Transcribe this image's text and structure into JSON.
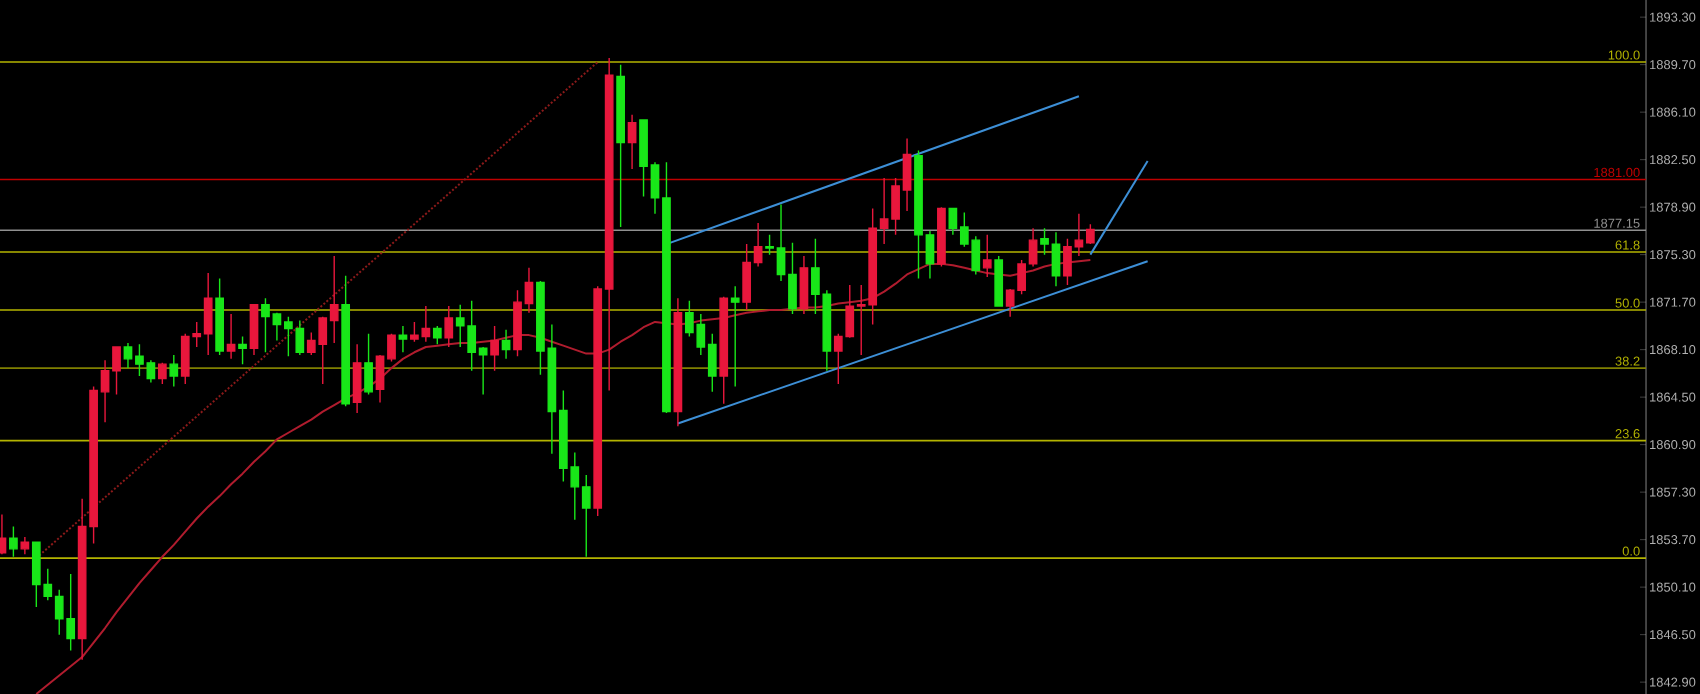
{
  "chart_data": {
    "type": "candlestick",
    "categories": [
      null,
      null,
      null,
      null,
      null,
      null,
      null,
      null,
      null,
      null,
      null,
      null,
      null,
      null,
      null,
      null,
      null,
      null,
      null,
      null,
      null,
      null,
      null,
      null,
      null,
      null,
      null,
      null,
      null,
      null,
      null,
      null,
      null,
      null,
      null,
      null,
      null,
      null,
      null,
      null,
      null,
      null,
      null,
      null,
      null,
      null,
      null,
      null,
      null,
      null,
      null,
      null,
      null,
      null,
      null,
      null,
      null,
      null,
      null,
      null,
      null,
      null,
      null,
      null,
      null,
      null,
      null,
      null,
      null,
      null,
      null,
      null,
      null,
      null,
      null,
      null,
      null,
      null,
      null,
      null,
      null,
      null,
      null,
      null,
      null,
      null,
      null,
      null,
      null,
      null,
      null,
      null,
      null,
      null,
      null,
      null,
      null,
      null,
      null,
      null,
      null,
      null,
      null,
      null,
      null,
      null,
      null,
      null,
      null,
      null,
      null,
      null,
      null,
      null,
      null,
      null,
      null,
      null,
      null,
      null,
      null,
      null,
      null,
      null,
      null,
      null,
      null,
      null,
      null,
      null,
      null,
      null,
      null,
      null,
      null,
      null,
      null,
      null,
      null,
      null,
      null,
      null,
      null,
      null
    ],
    "ohlc": [
      [
        1852.7,
        1855.6,
        1852.6,
        1853.8
      ],
      [
        1853.8,
        1854.7,
        1852.4,
        1853.0
      ],
      [
        1853.0,
        1853.9,
        1852.6,
        1853.5
      ],
      [
        1853.5,
        1853.5,
        1848.6,
        1850.3
      ],
      [
        1850.3,
        1851.5,
        1849.1,
        1849.4
      ],
      [
        1849.4,
        1849.9,
        1846.5,
        1847.7
      ],
      [
        1847.7,
        1851.1,
        1845.3,
        1846.2
      ],
      [
        1846.2,
        1856.8,
        1844.6,
        1854.7
      ],
      [
        1854.7,
        1865.3,
        1853.4,
        1865.0
      ],
      [
        1864.9,
        1867.3,
        1862.6,
        1866.5
      ],
      [
        1866.5,
        1868.3,
        1864.7,
        1868.3
      ],
      [
        1868.3,
        1868.6,
        1866.7,
        1867.4
      ],
      [
        1867.6,
        1868.5,
        1866.1,
        1867.0
      ],
      [
        1867.1,
        1867.3,
        1865.6,
        1865.9
      ],
      [
        1865.9,
        1867.1,
        1865.5,
        1867.0
      ],
      [
        1867.0,
        1867.7,
        1865.3,
        1866.1
      ],
      [
        1866.1,
        1869.3,
        1865.5,
        1869.1
      ],
      [
        1869.1,
        1870.2,
        1868.3,
        1869.3
      ],
      [
        1869.3,
        1873.9,
        1867.7,
        1872.0
      ],
      [
        1872.0,
        1873.5,
        1867.7,
        1868.0
      ],
      [
        1868.0,
        1870.8,
        1867.4,
        1868.5
      ],
      [
        1868.5,
        1869.1,
        1867.0,
        1868.2
      ],
      [
        1868.2,
        1871.5,
        1867.7,
        1871.5
      ],
      [
        1871.5,
        1872.0,
        1867.9,
        1870.6
      ],
      [
        1870.8,
        1870.9,
        1868.8,
        1870.0
      ],
      [
        1870.2,
        1870.6,
        1867.6,
        1869.7
      ],
      [
        1869.7,
        1870.3,
        1867.7,
        1867.9
      ],
      [
        1867.9,
        1869.4,
        1867.7,
        1868.8
      ],
      [
        1868.5,
        1870.6,
        1865.5,
        1870.5
      ],
      [
        1870.3,
        1875.2,
        1868.6,
        1871.5
      ],
      [
        1871.5,
        1873.7,
        1863.8,
        1864.0
      ],
      [
        1864.1,
        1868.5,
        1863.3,
        1867.1
      ],
      [
        1867.1,
        1869.3,
        1864.7,
        1864.9
      ],
      [
        1865.1,
        1867.7,
        1864.1,
        1867.6
      ],
      [
        1867.4,
        1869.3,
        1867.2,
        1869.2
      ],
      [
        1869.2,
        1869.9,
        1867.9,
        1868.9
      ],
      [
        1868.9,
        1870.2,
        1868.7,
        1869.2
      ],
      [
        1869.1,
        1871.4,
        1868.7,
        1869.7
      ],
      [
        1869.7,
        1869.9,
        1868.5,
        1869.0
      ],
      [
        1869.0,
        1871.4,
        1868.3,
        1870.5
      ],
      [
        1870.5,
        1871.5,
        1868.3,
        1869.9
      ],
      [
        1869.9,
        1871.8,
        1866.5,
        1867.9
      ],
      [
        1868.2,
        1868.3,
        1864.7,
        1867.7
      ],
      [
        1867.7,
        1869.9,
        1866.5,
        1868.8
      ],
      [
        1868.8,
        1869.6,
        1867.4,
        1868.1
      ],
      [
        1868.1,
        1872.6,
        1867.6,
        1871.7
      ],
      [
        1871.6,
        1874.3,
        1870.9,
        1873.2
      ],
      [
        1873.2,
        1873.3,
        1866.2,
        1868.0
      ],
      [
        1868.2,
        1870.0,
        1860.2,
        1863.4
      ],
      [
        1863.5,
        1865.0,
        1858.1,
        1859.1
      ],
      [
        1859.2,
        1860.3,
        1855.2,
        1857.7
      ],
      [
        1857.7,
        1858.6,
        1852.4,
        1856.1
      ],
      [
        1856.1,
        1872.9,
        1855.5,
        1872.7
      ],
      [
        1872.7,
        1890.2,
        1865.0,
        1888.9
      ],
      [
        1888.8,
        1889.7,
        1877.4,
        1883.8
      ],
      [
        1883.8,
        1885.9,
        1881.8,
        1885.3
      ],
      [
        1885.5,
        1885.5,
        1879.7,
        1882.0
      ],
      [
        1882.1,
        1882.3,
        1878.4,
        1879.6
      ],
      [
        1879.6,
        1882.3,
        1863.3,
        1863.4
      ],
      [
        1863.4,
        1872.0,
        1862.3,
        1870.9
      ],
      [
        1870.9,
        1871.8,
        1869.1,
        1869.4
      ],
      [
        1870.0,
        1870.8,
        1867.7,
        1868.3
      ],
      [
        1868.5,
        1869.3,
        1864.9,
        1866.1
      ],
      [
        1866.1,
        1872.1,
        1864.0,
        1872.0
      ],
      [
        1872.0,
        1872.9,
        1865.3,
        1871.7
      ],
      [
        1871.7,
        1876.1,
        1871.1,
        1874.7
      ],
      [
        1874.7,
        1877.7,
        1874.4,
        1875.9
      ],
      [
        1875.9,
        1876.8,
        1875.3,
        1875.8
      ],
      [
        1875.8,
        1879.1,
        1873.3,
        1873.8
      ],
      [
        1873.8,
        1876.2,
        1870.8,
        1871.2
      ],
      [
        1871.2,
        1875.2,
        1870.8,
        1874.3
      ],
      [
        1874.3,
        1876.5,
        1870.8,
        1872.3
      ],
      [
        1872.3,
        1872.6,
        1866.5,
        1868.0
      ],
      [
        1868.0,
        1869.3,
        1865.5,
        1869.1
      ],
      [
        1869.1,
        1873.0,
        1869.0,
        1871.4
      ],
      [
        1871.4,
        1873.0,
        1867.7,
        1871.5
      ],
      [
        1871.5,
        1878.8,
        1870.0,
        1877.3
      ],
      [
        1877.3,
        1881.1,
        1876.1,
        1878.0
      ],
      [
        1878.0,
        1881.1,
        1876.8,
        1880.5
      ],
      [
        1880.2,
        1884.1,
        1878.6,
        1882.9
      ],
      [
        1882.8,
        1883.2,
        1873.5,
        1876.8
      ],
      [
        1876.8,
        1877.1,
        1873.5,
        1874.6
      ],
      [
        1874.6,
        1878.9,
        1874.4,
        1878.8
      ],
      [
        1878.8,
        1878.8,
        1876.8,
        1877.3
      ],
      [
        1877.4,
        1878.5,
        1875.9,
        1876.1
      ],
      [
        1876.4,
        1876.7,
        1873.8,
        1874.1
      ],
      [
        1874.3,
        1876.8,
        1873.6,
        1874.9
      ],
      [
        1874.9,
        1875.2,
        1871.4,
        1871.4
      ],
      [
        1871.4,
        1872.7,
        1870.6,
        1872.6
      ],
      [
        1872.6,
        1874.9,
        1872.3,
        1874.6
      ],
      [
        1874.6,
        1877.3,
        1874.4,
        1876.4
      ],
      [
        1876.5,
        1877.3,
        1875.3,
        1876.1
      ],
      [
        1876.1,
        1877.0,
        1872.9,
        1873.7
      ],
      [
        1873.7,
        1876.5,
        1873.0,
        1875.9
      ],
      [
        1875.9,
        1878.4,
        1875.2,
        1876.4
      ],
      [
        1876.2,
        1877.6,
        1876.1,
        1877.2
      ],
      null,
      null,
      null,
      null,
      null,
      null,
      null,
      null,
      null,
      null,
      null,
      null,
      null,
      null,
      null,
      null,
      null,
      null,
      null,
      null,
      null,
      null,
      null,
      null,
      null,
      null,
      null,
      null,
      null,
      null,
      null,
      null,
      null,
      null,
      null,
      null,
      null,
      null,
      null,
      null,
      null,
      null,
      null,
      null,
      null,
      null,
      null,
      null
    ],
    "colors": [
      "#e8173c",
      "#19e619",
      "#e8173c",
      "#19e619",
      "#19e619",
      "#19e619",
      "#19e619",
      "#e8173c",
      "#e8173c",
      "#e8173c",
      "#e8173c",
      "#19e619",
      "#19e619",
      "#19e619",
      "#e8173c",
      "#19e619",
      "#e8173c",
      "#e8173c",
      "#e8173c",
      "#19e619",
      "#e8173c",
      "#19e619",
      "#e8173c",
      "#19e619",
      "#19e619",
      "#19e619",
      "#19e619",
      "#e8173c",
      "#e8173c",
      "#e8173c",
      "#19e619",
      "#e8173c",
      "#19e619",
      "#e8173c",
      "#e8173c",
      "#19e619",
      "#e8173c",
      "#e8173c",
      "#19e619",
      "#e8173c",
      "#19e619",
      "#19e619",
      "#19e619",
      "#e8173c",
      "#19e619",
      "#e8173c",
      "#e8173c",
      "#19e619",
      "#19e619",
      "#19e619",
      "#19e619",
      "#19e619",
      "#e8173c",
      "#e8173c",
      "#19e619",
      "#e8173c",
      "#19e619",
      "#19e619",
      "#19e619",
      "#e8173c",
      "#19e619",
      "#19e619",
      "#19e619",
      "#e8173c",
      "#19e619",
      "#e8173c",
      "#e8173c",
      "#19e619",
      "#19e619",
      "#19e619",
      "#e8173c",
      "#19e619",
      "#19e619",
      "#e8173c",
      "#e8173c",
      "#e8173c",
      "#e8173c",
      "#e8173c",
      "#e8173c",
      "#e8173c",
      "#19e619",
      "#19e619",
      "#e8173c",
      "#19e619",
      "#19e619",
      "#19e619",
      "#e8173c",
      "#19e619",
      "#e8173c",
      "#e8173c",
      "#e8173c",
      "#19e619",
      "#19e619",
      "#e8173c",
      "#e8173c",
      "#e8173c",
      null,
      null,
      null,
      null,
      null,
      null,
      null,
      null,
      null,
      null,
      null,
      null,
      null,
      null,
      null,
      null,
      null,
      null,
      null,
      null,
      null,
      null,
      null,
      null,
      null,
      null,
      null,
      null,
      null,
      null,
      null,
      null,
      null,
      null,
      null,
      null,
      null,
      null,
      null,
      null,
      null,
      null,
      null,
      null,
      null,
      null,
      null,
      null
    ],
    "series": [
      {
        "type": "line",
        "color": "#b01c2e",
        "line_style": "solid",
        "values": [
          null,
          null,
          null,
          1842.0,
          1842.7,
          1843.4,
          1844.1,
          1844.8,
          1845.9,
          1847.0,
          1848.2,
          1849.3,
          1850.4,
          1851.4,
          1852.4,
          1853.3,
          1854.3,
          1855.3,
          1856.2,
          1857.0,
          1857.9,
          1858.7,
          1859.6,
          1860.4,
          1861.3,
          1861.8,
          1862.3,
          1862.8,
          1863.4,
          1863.9,
          1864.4,
          1864.8,
          1865.3,
          1865.9,
          1866.7,
          1867.4,
          1867.9,
          1868.3,
          1868.4,
          1868.5,
          1868.6,
          1868.6,
          1868.7,
          1868.8,
          1869.0,
          1869.2,
          1869.2,
          1869.0,
          1868.7,
          1868.4,
          1868.1,
          1867.8,
          1867.8,
          1868.1,
          1868.7,
          1869.2,
          1869.8,
          1870.2,
          1870.1,
          1870.0,
          1870.1,
          1870.3,
          1870.4,
          1870.5,
          1870.7,
          1870.9,
          1871.0,
          1871.1,
          1871.1,
          1871.2,
          1871.3,
          1871.3,
          1871.4,
          1871.6,
          1871.7,
          1871.8,
          1872.0,
          1872.5,
          1873.1,
          1873.8,
          1874.2,
          1874.6,
          1874.6,
          1874.5,
          1874.3,
          1874.1,
          1873.9,
          1873.8,
          1873.7,
          1873.9,
          1874.1,
          1874.4,
          1874.6,
          1874.7,
          1874.8,
          1874.9,
          null,
          null,
          null,
          null,
          null,
          null,
          null,
          null,
          null,
          null,
          null,
          null,
          null,
          null,
          null,
          null,
          null,
          null,
          null,
          null,
          null,
          null,
          null,
          null,
          null,
          null,
          null,
          null,
          null,
          null,
          null,
          null,
          null,
          null,
          null,
          null,
          null,
          null,
          null,
          null,
          null,
          null,
          null,
          null,
          null,
          null,
          null,
          null
        ]
      },
      {
        "type": "line",
        "color": "#8b1a1a",
        "line_style": "dotted",
        "values": [
          null,
          null,
          null,
          1852.3,
          null,
          null,
          null,
          null,
          null,
          null,
          null,
          null,
          null,
          null,
          null,
          null,
          null,
          null,
          null,
          null,
          null,
          null,
          null,
          null,
          null,
          null,
          null,
          null,
          null,
          null,
          null,
          null,
          null,
          null,
          null,
          null,
          null,
          null,
          null,
          null,
          null,
          null,
          null,
          null,
          null,
          null,
          null,
          null,
          null,
          null,
          null,
          null,
          1889.9,
          null,
          null,
          null,
          null,
          null,
          null,
          null,
          null,
          null,
          null,
          null,
          null,
          null,
          null,
          null,
          null,
          null,
          null,
          null,
          null,
          null,
          null,
          null,
          null,
          null,
          null,
          null,
          null,
          null,
          null,
          null,
          null,
          null,
          null,
          null,
          null,
          null,
          null,
          null,
          null,
          null,
          null,
          null,
          null,
          null,
          null,
          null,
          null,
          null,
          null,
          null,
          null,
          null,
          null,
          null,
          null,
          null,
          null,
          null,
          null,
          null,
          null,
          null,
          null,
          null,
          null,
          null,
          null,
          null,
          null,
          null,
          null,
          null,
          null,
          null,
          null,
          null,
          null,
          null,
          null,
          null,
          null,
          null,
          null,
          null,
          null,
          null,
          null,
          null,
          null,
          null
        ]
      },
      {
        "type": "line",
        "color": "#3d8fd6",
        "line_style": "solid",
        "values": [
          null,
          null,
          null,
          null,
          null,
          null,
          null,
          null,
          null,
          null,
          null,
          null,
          null,
          null,
          null,
          null,
          null,
          null,
          null,
          null,
          null,
          null,
          null,
          null,
          null,
          null,
          null,
          null,
          null,
          null,
          null,
          null,
          null,
          null,
          null,
          null,
          null,
          null,
          null,
          null,
          null,
          null,
          null,
          null,
          null,
          null,
          null,
          null,
          null,
          null,
          null,
          null,
          null,
          null,
          null,
          null,
          null,
          null,
          1876.1,
          null,
          null,
          null,
          null,
          null,
          null,
          null,
          null,
          null,
          null,
          null,
          null,
          null,
          null,
          null,
          null,
          null,
          null,
          null,
          null,
          null,
          null,
          null,
          null,
          null,
          null,
          null,
          null,
          null,
          null,
          null,
          null,
          null,
          null,
          null,
          1887.3,
          null,
          null,
          null,
          null,
          null,
          null,
          null,
          null,
          null,
          null,
          null,
          null,
          null,
          null,
          null,
          null,
          null,
          null,
          null,
          null,
          null,
          null,
          null,
          null,
          null,
          null,
          null,
          null,
          null,
          null,
          null,
          null,
          null,
          null,
          null,
          null,
          null,
          null,
          null,
          null,
          null,
          null,
          null,
          null,
          null,
          null,
          null,
          null,
          null
        ]
      },
      {
        "type": "line",
        "color": "#3d8fd6",
        "line_style": "solid",
        "values": [
          null,
          null,
          null,
          null,
          null,
          null,
          null,
          null,
          null,
          null,
          null,
          null,
          null,
          null,
          null,
          null,
          null,
          null,
          null,
          null,
          null,
          null,
          null,
          null,
          null,
          null,
          null,
          null,
          null,
          null,
          null,
          null,
          null,
          null,
          null,
          null,
          null,
          null,
          null,
          null,
          null,
          null,
          null,
          null,
          null,
          null,
          null,
          null,
          null,
          null,
          null,
          null,
          null,
          null,
          null,
          null,
          null,
          null,
          null,
          1862.5,
          null,
          null,
          null,
          null,
          null,
          null,
          null,
          null,
          null,
          null,
          null,
          null,
          null,
          null,
          null,
          null,
          null,
          null,
          null,
          null,
          null,
          null,
          null,
          null,
          null,
          null,
          null,
          null,
          null,
          null,
          null,
          null,
          null,
          null,
          null,
          null,
          null,
          null,
          null,
          null,
          1874.8,
          null,
          null,
          null,
          null,
          null,
          null,
          null,
          null,
          null,
          null,
          null,
          null,
          null,
          null,
          null,
          null,
          null,
          null,
          null,
          null,
          null,
          null,
          null,
          null,
          null,
          null,
          null,
          null,
          null,
          null,
          null,
          null,
          null,
          null,
          null,
          null,
          null,
          null,
          null,
          null,
          null,
          null,
          null
        ]
      },
      {
        "type": "line",
        "color": "#3d8fd6",
        "line_style": "solid",
        "values": [
          null,
          null,
          null,
          null,
          null,
          null,
          null,
          null,
          null,
          null,
          null,
          null,
          null,
          null,
          null,
          null,
          null,
          null,
          null,
          null,
          null,
          null,
          null,
          null,
          null,
          null,
          null,
          null,
          null,
          null,
          null,
          null,
          null,
          null,
          null,
          null,
          null,
          null,
          null,
          null,
          null,
          null,
          null,
          null,
          null,
          null,
          null,
          null,
          null,
          null,
          null,
          null,
          null,
          null,
          null,
          null,
          null,
          null,
          null,
          null,
          null,
          null,
          null,
          null,
          null,
          null,
          null,
          null,
          null,
          null,
          null,
          null,
          null,
          null,
          null,
          null,
          null,
          null,
          null,
          null,
          null,
          null,
          null,
          null,
          null,
          null,
          null,
          null,
          null,
          null,
          null,
          null,
          null,
          null,
          null,
          1875.3,
          null,
          null,
          null,
          null,
          1882.4,
          null,
          null,
          null,
          null,
          null,
          null,
          null,
          null,
          null,
          null,
          null,
          null,
          null,
          null,
          null,
          null,
          null,
          null,
          null,
          null,
          null,
          null,
          null,
          null,
          null,
          null,
          null,
          null,
          null,
          null,
          null,
          null,
          null,
          null,
          null,
          null,
          null,
          null,
          null,
          null,
          null,
          null,
          null
        ]
      }
    ],
    "ylim": [
      1842.0,
      1894.6
    ],
    "yticks": [
      {
        "value": 1893.3,
        "label": "1893.30"
      },
      {
        "value": 1889.7,
        "label": "1889.70"
      },
      {
        "value": 1886.1,
        "label": "1886.10"
      },
      {
        "value": 1882.5,
        "label": "1882.50"
      },
      {
        "value": 1878.9,
        "label": "1878.90"
      },
      {
        "value": 1875.3,
        "label": "1875.30"
      },
      {
        "value": 1871.7,
        "label": "1871.70"
      },
      {
        "value": 1868.1,
        "label": "1868.10"
      },
      {
        "value": 1864.5,
        "label": "1864.50"
      },
      {
        "value": 1860.9,
        "label": "1860.90"
      },
      {
        "value": 1857.3,
        "label": "1857.30"
      },
      {
        "value": 1853.7,
        "label": "1853.70"
      },
      {
        "value": 1850.1,
        "label": "1850.10"
      },
      {
        "value": 1846.5,
        "label": "1846.50"
      },
      {
        "value": 1842.9,
        "label": "1842.90"
      }
    ],
    "ref_lines": [
      {
        "axis": "y",
        "value": 1889.9,
        "color": "#b4b400"
      },
      {
        "axis": "y",
        "value": 1881.0,
        "label": "1881.00",
        "color": "#c00000"
      },
      {
        "axis": "y",
        "value": 1877.15,
        "label": "1877.15",
        "color": "#909090"
      },
      {
        "axis": "y",
        "value": 1875.5,
        "color": "#b4b400"
      },
      {
        "axis": "y",
        "value": 1871.1,
        "color": "#b4b400"
      },
      {
        "axis": "y",
        "value": 1866.7,
        "color": "#808000"
      },
      {
        "axis": "y",
        "value": 1861.2,
        "color": "#b4b400"
      },
      {
        "axis": "y",
        "value": 1852.3,
        "color": "#b4b400"
      }
    ],
    "annotations": [
      {
        "text": "100.0",
        "y": 1889.9
      },
      {
        "text": "61.8",
        "y": 1875.5
      },
      {
        "text": "50.0",
        "y": 1871.1
      },
      {
        "text": "38.2",
        "y": 1866.7
      },
      {
        "text": "23.6",
        "y": 1861.2
      },
      {
        "text": "0.0",
        "y": 1852.3
      }
    ],
    "tick_labels": "y"
  }
}
